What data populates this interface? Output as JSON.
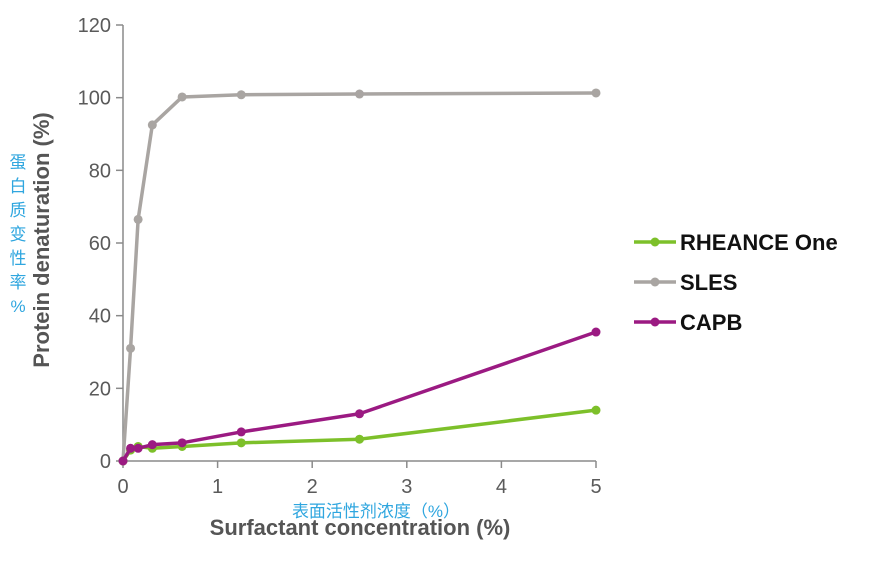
{
  "chart_data": {
    "type": "line",
    "xlabel": "Surfactant concentration (%)",
    "xlabel_cn": "表面活性剂浓度（%）",
    "ylabel": "Protein denaturation (%)",
    "ylabel_cn": [
      "蛋",
      "白",
      "质",
      "变",
      "性",
      "率",
      "%"
    ],
    "xlim": [
      0,
      5
    ],
    "ylim": [
      0,
      120
    ],
    "xticks": [
      0,
      1,
      2,
      3,
      4,
      5
    ],
    "yticks": [
      0,
      20,
      40,
      60,
      80,
      100,
      120
    ],
    "legend_position": "right",
    "grid": false,
    "series": [
      {
        "name": "RHEANCE One",
        "color": "#7dc02a",
        "x": [
          0,
          0.08,
          0.16,
          0.31,
          0.625,
          1.25,
          2.5,
          5
        ],
        "y": [
          0,
          3.0,
          4.0,
          3.5,
          4.0,
          5.0,
          6.0,
          14.0
        ]
      },
      {
        "name": "SLES",
        "color": "#a9a5a2",
        "x": [
          0,
          0.08,
          0.16,
          0.31,
          0.625,
          1.25,
          2.5,
          5
        ],
        "y": [
          0,
          31,
          66.5,
          92.5,
          100.2,
          100.8,
          101.0,
          101.3
        ]
      },
      {
        "name": "CAPB",
        "color": "#9b1a82",
        "x": [
          0,
          0.08,
          0.16,
          0.31,
          0.625,
          1.25,
          2.5,
          5
        ],
        "y": [
          0,
          3.5,
          3.5,
          4.5,
          5.0,
          8.0,
          13.0,
          35.5
        ]
      }
    ]
  }
}
